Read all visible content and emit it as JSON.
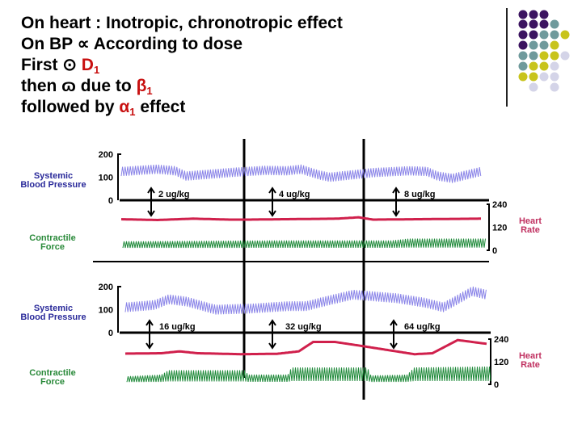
{
  "slide": {
    "lines": [
      {
        "text": "On heart : Inotropic, chronotropic effect"
      },
      {
        "pre": "On BP ",
        "symbol": "∝",
        "post": " According to dose"
      },
      {
        "pre": "First ",
        "symbol": "⊙",
        "red": "D",
        "sub": "1",
        "post": ""
      },
      {
        "pre": "then ",
        "symbol": "ɷ",
        "post_pre_red": " due to ",
        "red": "β",
        "sub": "1",
        "post": ""
      },
      {
        "pre": "followed by ",
        "red": "α",
        "sub": "1",
        "post": " effect"
      }
    ],
    "accent_color": "#c81010",
    "decor_dot_colors": {
      "purple": "#3c1460",
      "teal": "#6f9a9c",
      "yellow": "#c8c41c",
      "lavender": "#d4d4e8"
    }
  },
  "figure": {
    "colors": {
      "bp": "#8a84e8",
      "hr": "#d0204c",
      "force": "#1f8a3a",
      "bp_label": "#2a2a9a",
      "hr_label": "#c03060",
      "force_label": "#2a8a3a"
    },
    "panels": [
      {
        "bp_label": [
          "Systemic",
          "Blood Pressure"
        ],
        "force_label": [
          "Contractile",
          "Force"
        ],
        "hr_label": [
          "Heart",
          "Rate"
        ],
        "bp_ticks": [
          "200",
          "100",
          "0"
        ],
        "hr_ticks": [
          "240",
          "120",
          "0"
        ],
        "doses": [
          "2 ug/kg",
          "4 ug/kg",
          "8 ug/kg"
        ],
        "bp_mean": [
          [
            0,
            125
          ],
          [
            10,
            135
          ],
          [
            15,
            128
          ],
          [
            18,
            105
          ],
          [
            30,
            120
          ],
          [
            40,
            130
          ],
          [
            46,
            128
          ],
          [
            50,
            135
          ],
          [
            55,
            110
          ],
          [
            58,
            100
          ],
          [
            70,
            120
          ],
          [
            80,
            128
          ],
          [
            85,
            125
          ],
          [
            88,
            105
          ],
          [
            92,
            95
          ],
          [
            100,
            125
          ]
        ],
        "bp_pulse": 40,
        "hr": [
          [
            0,
            162
          ],
          [
            10,
            158
          ],
          [
            20,
            165
          ],
          [
            30,
            160
          ],
          [
            35,
            160
          ],
          [
            50,
            163
          ],
          [
            60,
            165
          ],
          [
            66,
            172
          ],
          [
            70,
            160
          ],
          [
            100,
            165
          ]
        ],
        "force": [
          [
            0,
            40
          ],
          [
            40,
            45
          ],
          [
            75,
            45
          ],
          [
            80,
            55
          ],
          [
            100,
            55
          ]
        ]
      },
      {
        "bp_label": [
          "Systemic",
          "Blood Pressure"
        ],
        "force_label": [
          "Contractile",
          "Force"
        ],
        "hr_label": [
          "Heart",
          "Rate"
        ],
        "bp_ticks": [
          "200",
          "100",
          "0"
        ],
        "hr_ticks": [
          "240",
          "120",
          "0"
        ],
        "doses": [
          "16 ug/kg",
          "32 ug/kg",
          "64 ug/kg"
        ],
        "bp_mean": [
          [
            0,
            110
          ],
          [
            8,
            120
          ],
          [
            12,
            145
          ],
          [
            17,
            135
          ],
          [
            25,
            100
          ],
          [
            35,
            105
          ],
          [
            45,
            115
          ],
          [
            50,
            115
          ],
          [
            55,
            135
          ],
          [
            63,
            165
          ],
          [
            75,
            150
          ],
          [
            83,
            130
          ],
          [
            88,
            110
          ],
          [
            91,
            135
          ],
          [
            96,
            180
          ],
          [
            100,
            165
          ]
        ],
        "bp_pulse": 42,
        "hr": [
          [
            0,
            163
          ],
          [
            10,
            165
          ],
          [
            15,
            175
          ],
          [
            20,
            165
          ],
          [
            32,
            160
          ],
          [
            42,
            162
          ],
          [
            48,
            175
          ],
          [
            52,
            225
          ],
          [
            58,
            225
          ],
          [
            65,
            205
          ],
          [
            80,
            160
          ],
          [
            85,
            165
          ],
          [
            92,
            235
          ],
          [
            100,
            215
          ]
        ],
        "force": [
          [
            0,
            35
          ],
          [
            10,
            45
          ],
          [
            12,
            70
          ],
          [
            33,
            70
          ],
          [
            34,
            45
          ],
          [
            45,
            45
          ],
          [
            46,
            85
          ],
          [
            67,
            85
          ],
          [
            68,
            40
          ],
          [
            78,
            45
          ],
          [
            80,
            85
          ],
          [
            100,
            90
          ]
        ]
      }
    ]
  }
}
